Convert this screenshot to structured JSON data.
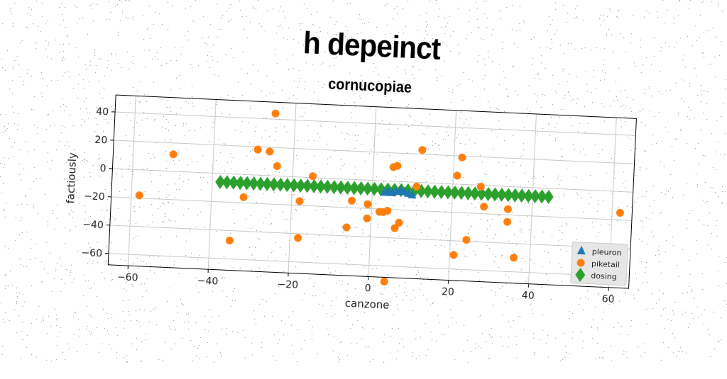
{
  "title": "h depeinct",
  "chart_data": {
    "type": "scatter",
    "title": "cornucopiae",
    "xlabel": "canzone",
    "ylabel": "factiously",
    "xlim": [
      -65,
      65
    ],
    "ylim": [
      -68,
      52
    ],
    "xticks": [
      -60,
      -40,
      -20,
      0,
      20,
      40,
      60
    ],
    "yticks": [
      -60,
      -40,
      -20,
      0,
      20,
      40
    ],
    "grid": true,
    "legend_position": "bottom-right",
    "series": [
      {
        "name": "pleuron",
        "marker": "triangle",
        "color": "#1f77b4",
        "points": [
          [
            3,
            -8
          ],
          [
            4,
            -7
          ],
          [
            5,
            -8
          ],
          [
            6,
            -7
          ],
          [
            7,
            -6
          ],
          [
            8,
            -7
          ],
          [
            9,
            -8
          ],
          [
            10,
            -9
          ]
        ]
      },
      {
        "name": "piketail",
        "marker": "circle",
        "color": "#ff7f0e",
        "points": [
          [
            -25,
            44
          ],
          [
            -50,
            12
          ],
          [
            -58,
            -18
          ],
          [
            -29,
            18
          ],
          [
            -26,
            17
          ],
          [
            -24,
            7
          ],
          [
            -32,
            -16
          ],
          [
            -35,
            -47
          ],
          [
            -18,
            -17
          ],
          [
            -15,
            1
          ],
          [
            -18,
            -43
          ],
          [
            -5,
            -15
          ],
          [
            -6,
            -34
          ],
          [
            -1,
            -17
          ],
          [
            -1,
            -27
          ],
          [
            2,
            -22
          ],
          [
            3,
            -22
          ],
          [
            4,
            -21
          ],
          [
            5,
            10
          ],
          [
            6,
            11
          ],
          [
            6,
            -33
          ],
          [
            7,
            -29
          ],
          [
            11,
            -3
          ],
          [
            12,
            23
          ],
          [
            21,
            -50
          ],
          [
            21,
            6
          ],
          [
            22,
            19
          ],
          [
            24,
            -39
          ],
          [
            27,
            -1
          ],
          [
            28,
            -15
          ],
          [
            34,
            -16
          ],
          [
            34,
            -25
          ],
          [
            36,
            -50
          ],
          [
            62,
            -15
          ],
          [
            4,
            -71
          ]
        ]
      },
      {
        "name": "dosing",
        "marker": "diamond",
        "color": "#2ca02c",
        "line_from": [
          -38,
          -6
        ],
        "line_to": [
          44,
          -6
        ],
        "count": 50
      }
    ]
  }
}
